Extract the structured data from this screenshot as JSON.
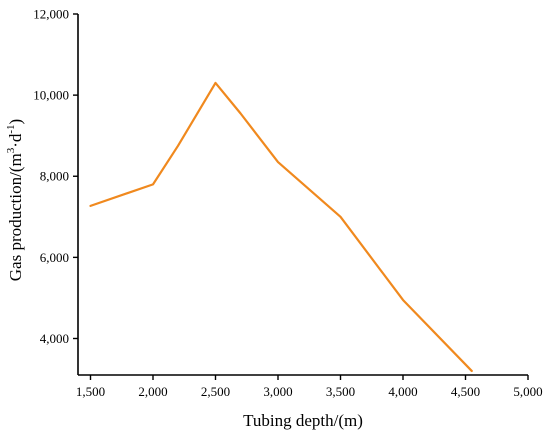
{
  "chart_data": {
    "type": "line",
    "title": "",
    "xlabel": "Tubing depth/(m)",
    "ylabel": "Gas production/(m³·d⁻¹)",
    "ylabel_parts": {
      "main": "Gas production/(m",
      "unit_a": "3",
      "dot": "·d",
      "unit_b": "-1",
      "close": ")"
    },
    "xlim": [
      1400,
      5000
    ],
    "ylim": [
      3100,
      12000
    ],
    "x_ticks": [
      1500,
      2000,
      2500,
      3000,
      3500,
      4000,
      4500,
      5000
    ],
    "x_tick_labels": [
      "1,500",
      "2,000",
      "2,500",
      "3,000",
      "3,500",
      "4,000",
      "4,500",
      "5,000"
    ],
    "y_ticks": [
      4000,
      6000,
      8000,
      10000,
      12000
    ],
    "y_tick_labels": [
      "4,000",
      "6,000",
      "8,000",
      "10,000",
      "12,000"
    ],
    "grid": false,
    "series": [
      {
        "color": "#f0891e",
        "x": [
          1500,
          2000,
          2200,
          2500,
          2700,
          3000,
          3500,
          4000,
          4550
        ],
        "y": [
          7270,
          7800,
          8750,
          10300,
          9550,
          8350,
          7000,
          4950,
          3200
        ]
      }
    ]
  }
}
